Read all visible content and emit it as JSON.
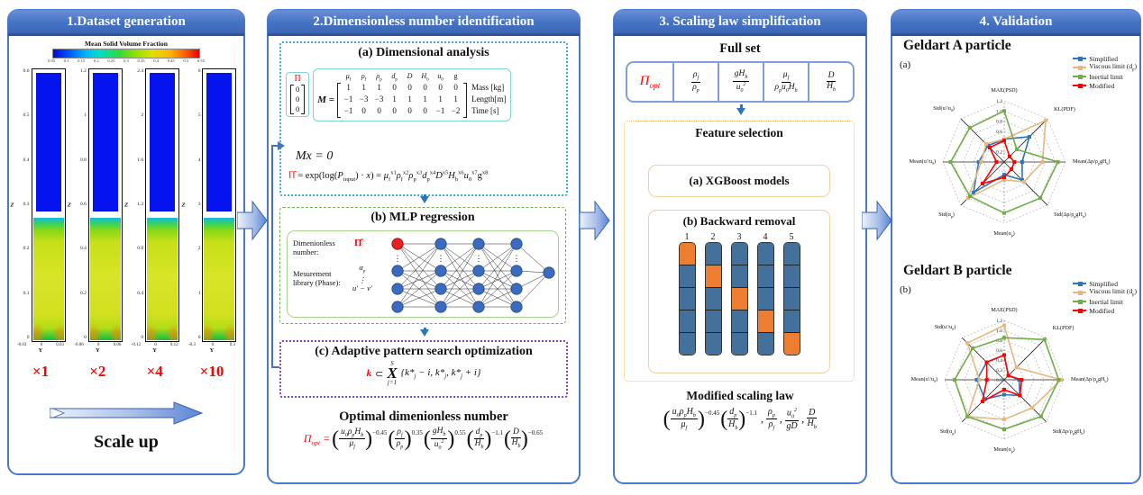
{
  "colors": {
    "header_blue": "#4472c4",
    "accent_red": "#ff0000",
    "orange_cell": "#ed7d31",
    "steel_cell": "#44719b",
    "series_blue": "#2e75b6",
    "series_tan": "#e6b77e",
    "series_green": "#70ad47",
    "series_red": "#ff0000"
  },
  "panel1": {
    "title": "1.Dataset generation",
    "colorbar": {
      "title": "Mean Solid Volume Fraction",
      "ticks": [
        "0.05",
        "0.1",
        "0.15",
        "0.2",
        "0.25",
        "0.3",
        "0.35",
        "0.4",
        "0.45",
        "0.5",
        "0.55"
      ]
    },
    "beds": [
      {
        "scale": "×1",
        "yticks": [
          "0.6",
          "0.5",
          "0.4",
          "0.3",
          "0.2",
          "0.1",
          "0"
        ],
        "xticks": [
          "-0.03",
          "0",
          "0.03"
        ],
        "xlabel": "Y",
        "zlabel": "Z"
      },
      {
        "scale": "×2",
        "yticks": [
          "1.2",
          "1",
          "0.8",
          "0.6",
          "0.4",
          "0.2",
          "0"
        ],
        "xticks": [
          "-0.06",
          "0",
          "0.06"
        ],
        "xlabel": "Y",
        "zlabel": "Z"
      },
      {
        "scale": "×4",
        "yticks": [
          "2.4",
          "2",
          "1.6",
          "1.2",
          "0.8",
          "0.4",
          "0"
        ],
        "xticks": [
          "-0.12",
          "0",
          "0.12"
        ],
        "xlabel": "Y",
        "zlabel": "Z"
      },
      {
        "scale": "×10",
        "yticks": [
          "6",
          "5",
          "4",
          "3",
          "2",
          "1",
          "0"
        ],
        "xticks": [
          "-0.3",
          "0",
          "0.3"
        ],
        "xlabel": "Y",
        "zlabel": "Z"
      }
    ],
    "scale_up_label": "Scale up"
  },
  "panel2": {
    "title": "2.Dimensionless number identification",
    "dim_analysis": {
      "title": "(a) Dimensional analysis",
      "pi_symbol": "Π",
      "pi_vector": [
        "0",
        "0",
        "0"
      ],
      "matrix_lhs": "M =",
      "matrix_headers": [
        "<i>μ</i><sub>f</sub>",
        "<i>ρ</i><sub>f</sub>",
        "<i>ρ</i><sub>p</sub>",
        "<i>d</i><sub>p</sub>",
        "<i>D</i>",
        "<i>H</i><sub>b</sub>",
        "<i>u</i><sub>0</sub>",
        "g"
      ],
      "matrix_rows": [
        [
          "1",
          "1",
          "1",
          "0",
          "0",
          "0",
          "0",
          "0"
        ],
        [
          "−1",
          "−3",
          "−3",
          "1",
          "1",
          "1",
          "1",
          "1"
        ],
        [
          "−1",
          "0",
          "0",
          "0",
          "0",
          "0",
          "−1",
          "−2"
        ]
      ],
      "row_labels": [
        "Mass [kg]",
        "Length[m]",
        "Time [s]"
      ],
      "eq1": "Mx = 0",
      "eq2_lhs": "Π̂",
      "eq2_rhs": " = exp(log(<i>P</i><sub>input</sub>) · <i>x</i>) = <i>μ</i><sub>f</sub><sup>x1</sup><i>ρ</i><sub>f</sub><sup>x2</sup><i>ρ</i><sub>p</sub><sup>x3</sup><i>d</i><sub>p</sub><sup>x4</sup><i>D</i><sup>x5</sup><i>H</i><sub>b</sub><sup>x6</sup><i>u</i><sub>0</sub><sup>x7</sup>g<sup>x8</sup>"
    },
    "mlp": {
      "title": "(b) MLP regression",
      "input_label1": "Dimenionless number:",
      "input_sym1": "Π̂",
      "input_label2": "Mesurement library (Phase):",
      "input_syms2": [
        "α<sub>p</sub>",
        "⋮",
        "<i>u</i>′ − <i>v</i>′"
      ],
      "layers": [
        4,
        4,
        4,
        4,
        1
      ]
    },
    "apso": {
      "title": "(c) Adaptive pattern search optimization",
      "lhs": "k",
      "rel": "⊂",
      "x_top": "S",
      "x_sym": "X",
      "x_bot": "j=1",
      "body": "{<i>k</i>*<sub>j</sub> − <i>i</i>, <i>k</i>*<sub>j</sub>, <i>k</i>*<sub>j</sub> + <i>i</i>}"
    },
    "optimal": {
      "title": "Optimal dimenionless number",
      "lhs": "Π<sub>opt</sub> =",
      "terms": [
        {
          "paren": true,
          "num": "<i>u</i><sub>0</sub><i>ρ</i><sub>p</sub><i>H</i><sub>b</sub>",
          "den": "<i>μ</i><sub>f</sub>",
          "exp": "−0.45"
        },
        {
          "paren": true,
          "num": "<i>ρ</i><sub>f</sub>",
          "den": "<i>ρ</i><sub>p</sub>",
          "exp": "0.35"
        },
        {
          "paren": true,
          "num": "g<i>H</i><sub>b</sub>",
          "den": "<i>u</i><sub>0</sub><sup>2</sup>",
          "exp": "0.55"
        },
        {
          "paren": true,
          "num": "<i>d</i><sub>p</sub>",
          "den": "<i>H</i><sub>b</sub>",
          "exp": "−1.1"
        },
        {
          "paren": true,
          "num": "<i>D</i>",
          "den": "<i>H</i><sub>b</sub>",
          "exp": "−0.65"
        }
      ]
    }
  },
  "panel3": {
    "title": "3. Scaling law simplification",
    "full_set": {
      "title": "Full set",
      "pi": "Π<sub>opt</sub>",
      "terms": [
        {
          "num": "<i>ρ</i><sub>f</sub>",
          "den": "<i>ρ</i><sub>p</sub>"
        },
        {
          "num": "g<i>H</i><sub>b</sub>",
          "den": "<i>u</i><sub>0</sub><sup>2</sup>"
        },
        {
          "num": "<i>μ</i><sub>f</sub>",
          "den": "<i>ρ</i><sub>p</sub><i>u</i><sub>0</sub><i>H</i><sub>b</sub>"
        },
        {
          "num": "<i>D</i>",
          "den": "<i>H</i><sub>b</sub>"
        }
      ]
    },
    "feature_selection": {
      "title": "Feature selection",
      "xgboost_label": "(a) XGBoost models",
      "backward_label": "(b) Backward removal",
      "column_labels": [
        "1",
        "2",
        "3",
        "4",
        "5"
      ],
      "rows_per_column": 5,
      "orange_row_per_column": [
        0,
        1,
        2,
        3,
        4
      ]
    },
    "modified": {
      "title": "Modified scaling law",
      "terms": [
        {
          "paren": true,
          "num": "<i>u</i><sub>0</sub><i>ρ</i><sub>p</sub><i>H</i><sub>b</sub>",
          "den": "<i>μ</i><sub>f</sub>",
          "exp": "−0.45"
        },
        {
          "paren": true,
          "num": "<i>d</i><sub>p</sub>",
          "den": "<i>H</i><sub>b</sub>",
          "exp": "−1.1",
          "sep": ","
        },
        {
          "num": "<i>ρ</i><sub>p</sub>",
          "den": "<i>ρ</i><sub>f</sub>",
          "sep": ","
        },
        {
          "num": "<i>u</i><sub>0</sub><sup>2</sup>",
          "den": "g<i>D</i>",
          "sep": ","
        },
        {
          "num": "<i>D</i>",
          "den": "<i>H</i><sub>b</sub>"
        }
      ]
    }
  },
  "panel4": {
    "title": "4. Validation",
    "headings": [
      "Geldart A particle",
      "Geldart B particle"
    ]
  },
  "chart_data": [
    {
      "type": "radar",
      "tag": "(a)",
      "title": "Geldart A particle",
      "axes": [
        "MAE(PSD)",
        "KL(PDF)",
        "Mean(Δp/ρ<sub>p</sub>gH<sub>b</sub>)",
        "Std(Δp/ρ<sub>p</sub>gH<sub>b</sub>)",
        "Mean(α<sub>p</sub>)",
        "Std(α<sub>p</sub>)",
        "Mean(u′/u<sub>0</sub>)",
        "Std(u′/u<sub>0</sub>)"
      ],
      "ticks": [
        "1.2",
        "1.0",
        "0.8",
        "0.6",
        "0.4",
        "0.2",
        "0.0"
      ],
      "rmax": 1.2,
      "grid": "dotted",
      "legend_position": "top-right",
      "series": [
        {
          "name": "Simplified",
          "color": "#2e75b6",
          "values": [
            0.45,
            0.7,
            0.35,
            0.5,
            0.25,
            0.85,
            0.5,
            0.45
          ]
        },
        {
          "name": "Viscous limit (d<sub>p</sub>)",
          "color": "#e6b77e",
          "values": [
            0.45,
            1.15,
            0.75,
            0.55,
            0.35,
            1.0,
            0.45,
            0.5
          ]
        },
        {
          "name": "Inertial limit",
          "color": "#70ad47",
          "values": [
            1.0,
            0.35,
            1.05,
            1.0,
            1.0,
            0.95,
            1.05,
            0.95
          ]
        },
        {
          "name": "Modified",
          "color": "#ff0000",
          "values": [
            0.42,
            0.15,
            0.2,
            0.2,
            0.3,
            0.6,
            0.15,
            0.4
          ]
        }
      ]
    },
    {
      "type": "radar",
      "tag": "(b)",
      "title": "Geldart B particle",
      "axes": [
        "MAE(PSD)",
        "KL(PDF)",
        "Mean(Δp/ρ<sub>p</sub>gH<sub>b</sub>)",
        "Std(Δp/ρ<sub>p</sub>gH<sub>b</sub>)",
        "Mean(α<sub>p</sub>)",
        "Std(α<sub>p</sub>)",
        "Mean(u′/u<sub>0</sub>)",
        "Std(u′/u<sub>0</sub>)"
      ],
      "ticks": [
        "1.2",
        "1.0",
        "0.8",
        "0.6",
        "0.4",
        "0.2",
        "0.0"
      ],
      "rmax": 1.2,
      "grid": "dotted",
      "legend_position": "top-right",
      "series": [
        {
          "name": "Simplified",
          "color": "#2e75b6",
          "values": [
            0.5,
            0.12,
            0.3,
            0.45,
            0.3,
            0.55,
            0.55,
            0.5
          ]
        },
        {
          "name": "Viscous limit (d<sub>p</sub>)",
          "color": "#e6b77e",
          "values": [
            1.1,
            0.35,
            1.15,
            0.8,
            0.8,
            1.05,
            0.5,
            1.05
          ]
        },
        {
          "name": "Inertial limit",
          "color": "#70ad47",
          "values": [
            0.85,
            1.15,
            1.1,
            1.05,
            1.0,
            1.05,
            1.0,
            0.9
          ]
        },
        {
          "name": "Modified",
          "color": "#ff0000",
          "values": [
            0.5,
            0.12,
            0.35,
            0.45,
            0.2,
            0.62,
            0.35,
            0.5
          ]
        }
      ]
    }
  ]
}
